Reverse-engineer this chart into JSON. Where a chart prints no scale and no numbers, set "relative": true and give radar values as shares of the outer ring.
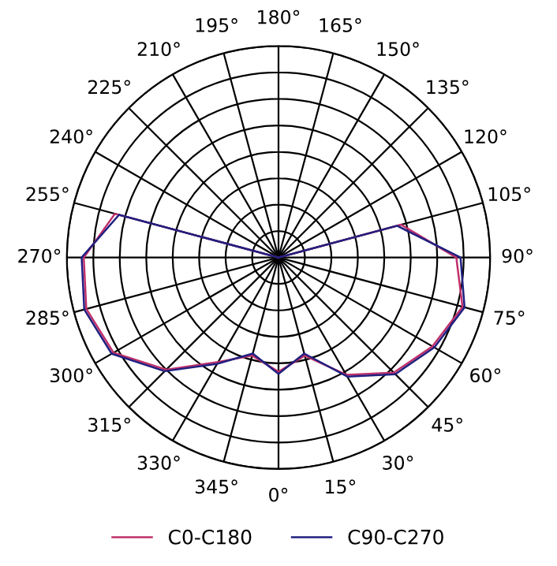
{
  "chart_data": {
    "type": "radar",
    "relative": true,
    "grid": true,
    "legend": "bottom",
    "line_style": "solid",
    "marker": "none",
    "categories": [
      "180°",
      "165°",
      "150°",
      "135°",
      "120°",
      "105°",
      "90°",
      "75°",
      "60°",
      "45°",
      "30°",
      "15°",
      "0°",
      "345°",
      "330°",
      "315°",
      "300°",
      "285°",
      "270°",
      "255°",
      "240°",
      "225°",
      "210°",
      "195°"
    ],
    "series": [
      {
        "name": "C0-C180",
        "color": "#c0306a",
        "values": [
          0,
          0,
          0,
          0,
          0,
          0.6,
          0.84,
          0.9,
          0.84,
          0.77,
          0.64,
          0.48,
          0.54,
          0.48,
          0.57,
          0.75,
          0.9,
          0.94,
          0.92,
          0.8,
          0,
          0,
          0,
          0
        ]
      },
      {
        "name": "C90-C270",
        "color": "#202080",
        "values": [
          0,
          0,
          0,
          0,
          0,
          0.58,
          0.86,
          0.91,
          0.85,
          0.78,
          0.65,
          0.47,
          0.55,
          0.47,
          0.58,
          0.76,
          0.91,
          0.95,
          0.93,
          0.78,
          0,
          0,
          0,
          0
        ]
      }
    ]
  }
}
